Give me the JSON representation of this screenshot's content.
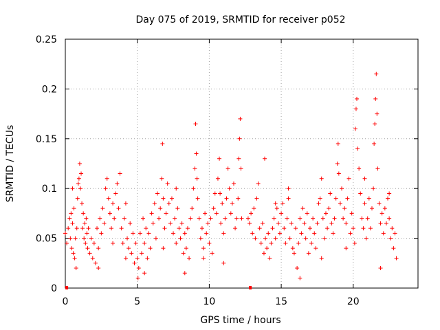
{
  "chart_data": {
    "type": "scatter",
    "title": "Day 075 of 2019, SRMTID for receiver p052",
    "xlabel": "GPS time / hours",
    "ylabel": "SRMTID / TECUs",
    "xlim": [
      0,
      24.5
    ],
    "ylim": [
      0,
      0.25
    ],
    "xticks": [
      0,
      5,
      10,
      15,
      20
    ],
    "xtick_labels": [
      "0",
      "5",
      "10",
      "15",
      "20"
    ],
    "yticks": [
      0,
      0.05,
      0.1,
      0.15,
      0.2,
      0.25
    ],
    "ytick_labels": [
      "0",
      "0.05",
      "0.1",
      "0.15",
      "0.2",
      "0.25"
    ],
    "grid": true,
    "marker": "+",
    "color": "#ff0000",
    "series": [
      {
        "name": "SRMTID",
        "points": [
          [
            0.0,
            0.055
          ],
          [
            0.1,
            0.045
          ],
          [
            0.2,
            0.06
          ],
          [
            0.3,
            0.07
          ],
          [
            0.35,
            0.05
          ],
          [
            0.4,
            0.075
          ],
          [
            0.45,
            0.04
          ],
          [
            0.5,
            0.065
          ],
          [
            0.55,
            0.035
          ],
          [
            0.6,
            0.08
          ],
          [
            0.65,
            0.03
          ],
          [
            0.7,
            0.05
          ],
          [
            0.75,
            0.02
          ],
          [
            0.8,
            0.06
          ],
          [
            0.85,
            0.09
          ],
          [
            0.9,
            0.105
          ],
          [
            0.95,
            0.11
          ],
          [
            1.0,
            0.125
          ],
          [
            1.05,
            0.1
          ],
          [
            1.1,
            0.115
          ],
          [
            1.15,
            0.085
          ],
          [
            1.2,
            0.06
          ],
          [
            1.25,
            0.075
          ],
          [
            1.3,
            0.05
          ],
          [
            1.35,
            0.065
          ],
          [
            1.4,
            0.045
          ],
          [
            1.45,
            0.07
          ],
          [
            1.5,
            0.055
          ],
          [
            1.55,
            0.04
          ],
          [
            1.6,
            0.06
          ],
          [
            1.7,
            0.035
          ],
          [
            1.8,
            0.05
          ],
          [
            1.9,
            0.03
          ],
          [
            2.0,
            0.045
          ],
          [
            2.1,
            0.025
          ],
          [
            2.2,
            0.06
          ],
          [
            2.3,
            0.04
          ],
          [
            2.4,
            0.07
          ],
          [
            2.5,
            0.055
          ],
          [
            2.6,
            0.08
          ],
          [
            2.7,
            0.065
          ],
          [
            2.8,
            0.1
          ],
          [
            2.9,
            0.11
          ],
          [
            3.0,
            0.09
          ],
          [
            3.1,
            0.075
          ],
          [
            3.2,
            0.06
          ],
          [
            3.3,
            0.085
          ],
          [
            3.4,
            0.07
          ],
          [
            3.5,
            0.095
          ],
          [
            3.6,
            0.105
          ],
          [
            3.7,
            0.08
          ],
          [
            3.8,
            0.115
          ],
          [
            3.9,
            0.06
          ],
          [
            4.0,
            0.045
          ],
          [
            4.1,
            0.07
          ],
          [
            4.2,
            0.03
          ],
          [
            4.3,
            0.05
          ],
          [
            4.4,
            0.04
          ],
          [
            4.5,
            0.065
          ],
          [
            4.6,
            0.035
          ],
          [
            4.7,
            0.055
          ],
          [
            4.8,
            0.025
          ],
          [
            4.9,
            0.045
          ],
          [
            5.0,
            0.03
          ],
          [
            5.05,
            0.01
          ],
          [
            5.1,
            0.02
          ],
          [
            5.2,
            0.055
          ],
          [
            5.3,
            0.035
          ],
          [
            5.4,
            0.07
          ],
          [
            5.5,
            0.045
          ],
          [
            5.6,
            0.06
          ],
          [
            5.7,
            0.03
          ],
          [
            5.8,
            0.055
          ],
          [
            5.9,
            0.04
          ],
          [
            6.0,
            0.075
          ],
          [
            6.1,
            0.065
          ],
          [
            6.2,
            0.085
          ],
          [
            6.3,
            0.05
          ],
          [
            6.4,
            0.095
          ],
          [
            6.5,
            0.07
          ],
          [
            6.6,
            0.08
          ],
          [
            6.7,
            0.11
          ],
          [
            6.75,
            0.145
          ],
          [
            6.8,
            0.09
          ],
          [
            6.9,
            0.06
          ],
          [
            7.0,
            0.075
          ],
          [
            7.1,
            0.105
          ],
          [
            7.2,
            0.085
          ],
          [
            7.3,
            0.065
          ],
          [
            7.4,
            0.09
          ],
          [
            7.5,
            0.055
          ],
          [
            7.6,
            0.07
          ],
          [
            7.7,
            0.045
          ],
          [
            7.8,
            0.08
          ],
          [
            7.9,
            0.06
          ],
          [
            8.0,
            0.05
          ],
          [
            8.1,
            0.065
          ],
          [
            8.2,
            0.035
          ],
          [
            8.3,
            0.055
          ],
          [
            8.4,
            0.04
          ],
          [
            8.5,
            0.06
          ],
          [
            8.6,
            0.03
          ],
          [
            8.7,
            0.07
          ],
          [
            8.8,
            0.08
          ],
          [
            8.9,
            0.1
          ],
          [
            9.0,
            0.12
          ],
          [
            9.05,
            0.165
          ],
          [
            9.1,
            0.135
          ],
          [
            9.15,
            0.11
          ],
          [
            9.2,
            0.09
          ],
          [
            9.3,
            0.07
          ],
          [
            9.4,
            0.05
          ],
          [
            9.5,
            0.06
          ],
          [
            9.6,
            0.04
          ],
          [
            9.7,
            0.075
          ],
          [
            9.8,
            0.055
          ],
          [
            9.9,
            0.065
          ],
          [
            10.0,
            0.045
          ],
          [
            10.1,
            0.07
          ],
          [
            10.2,
            0.035
          ],
          [
            10.3,
            0.08
          ],
          [
            10.4,
            0.095
          ],
          [
            10.5,
            0.075
          ],
          [
            10.6,
            0.11
          ],
          [
            10.7,
            0.13
          ],
          [
            10.75,
            0.095
          ],
          [
            10.8,
            0.065
          ],
          [
            10.9,
            0.085
          ],
          [
            11.0,
            0.055
          ],
          [
            11.1,
            0.07
          ],
          [
            11.2,
            0.09
          ],
          [
            11.3,
            0.12
          ],
          [
            11.4,
            0.1
          ],
          [
            11.5,
            0.075
          ],
          [
            11.6,
            0.085
          ],
          [
            11.7,
            0.105
          ],
          [
            11.8,
            0.06
          ],
          [
            11.9,
            0.07
          ],
          [
            12.0,
            0.09
          ],
          [
            12.05,
            0.13
          ],
          [
            12.1,
            0.15
          ],
          [
            12.15,
            0.17
          ],
          [
            12.2,
            0.12
          ],
          [
            12.25,
            0.07
          ],
          [
            12.7,
            0.07
          ],
          [
            12.8,
            0.065
          ],
          [
            12.9,
            0.075
          ],
          [
            13.0,
            0.055
          ],
          [
            13.1,
            0.08
          ],
          [
            13.2,
            0.05
          ],
          [
            13.3,
            0.09
          ],
          [
            13.4,
            0.105
          ],
          [
            13.5,
            0.06
          ],
          [
            13.6,
            0.045
          ],
          [
            13.7,
            0.065
          ],
          [
            13.8,
            0.035
          ],
          [
            13.85,
            0.13
          ],
          [
            13.9,
            0.05
          ],
          [
            14.0,
            0.04
          ],
          [
            14.1,
            0.055
          ],
          [
            14.2,
            0.03
          ],
          [
            14.3,
            0.045
          ],
          [
            14.4,
            0.06
          ],
          [
            14.5,
            0.07
          ],
          [
            14.6,
            0.05
          ],
          [
            14.7,
            0.08
          ],
          [
            14.8,
            0.065
          ],
          [
            14.9,
            0.055
          ],
          [
            15.0,
            0.075
          ],
          [
            15.1,
            0.085
          ],
          [
            15.2,
            0.06
          ],
          [
            15.3,
            0.045
          ],
          [
            15.4,
            0.07
          ],
          [
            15.5,
            0.09
          ],
          [
            15.6,
            0.05
          ],
          [
            15.7,
            0.065
          ],
          [
            15.8,
            0.04
          ],
          [
            15.9,
            0.035
          ],
          [
            16.0,
            0.06
          ],
          [
            16.1,
            0.02
          ],
          [
            16.2,
            0.045
          ],
          [
            16.3,
            0.07
          ],
          [
            16.4,
            0.055
          ],
          [
            16.5,
            0.08
          ],
          [
            16.6,
            0.065
          ],
          [
            16.7,
            0.05
          ],
          [
            16.8,
            0.075
          ],
          [
            16.9,
            0.035
          ],
          [
            17.0,
            0.06
          ],
          [
            17.1,
            0.045
          ],
          [
            17.2,
            0.07
          ],
          [
            17.3,
            0.055
          ],
          [
            17.4,
            0.04
          ],
          [
            17.5,
            0.065
          ],
          [
            17.6,
            0.085
          ],
          [
            17.7,
            0.09
          ],
          [
            17.8,
            0.11
          ],
          [
            17.9,
            0.07
          ],
          [
            18.0,
            0.05
          ],
          [
            18.1,
            0.075
          ],
          [
            18.2,
            0.06
          ],
          [
            18.3,
            0.08
          ],
          [
            18.4,
            0.095
          ],
          [
            18.5,
            0.065
          ],
          [
            18.6,
            0.055
          ],
          [
            18.7,
            0.07
          ],
          [
            18.8,
            0.09
          ],
          [
            18.9,
            0.125
          ],
          [
            18.95,
            0.145
          ],
          [
            19.0,
            0.115
          ],
          [
            19.1,
            0.085
          ],
          [
            19.2,
            0.1
          ],
          [
            19.3,
            0.07
          ],
          [
            19.4,
            0.08
          ],
          [
            19.5,
            0.065
          ],
          [
            19.6,
            0.09
          ],
          [
            19.7,
            0.11
          ],
          [
            19.8,
            0.055
          ],
          [
            19.9,
            0.075
          ],
          [
            20.0,
            0.06
          ],
          [
            20.1,
            0.045
          ],
          [
            20.15,
            0.16
          ],
          [
            20.2,
            0.18
          ],
          [
            20.25,
            0.19
          ],
          [
            20.3,
            0.14
          ],
          [
            20.4,
            0.12
          ],
          [
            20.5,
            0.095
          ],
          [
            20.6,
            0.07
          ],
          [
            20.7,
            0.06
          ],
          [
            20.8,
            0.085
          ],
          [
            20.9,
            0.05
          ],
          [
            21.0,
            0.07
          ],
          [
            21.1,
            0.09
          ],
          [
            21.2,
            0.06
          ],
          [
            21.3,
            0.08
          ],
          [
            21.4,
            0.1
          ],
          [
            21.45,
            0.145
          ],
          [
            21.5,
            0.165
          ],
          [
            21.55,
            0.19
          ],
          [
            21.6,
            0.215
          ],
          [
            21.65,
            0.175
          ],
          [
            21.7,
            0.12
          ],
          [
            21.8,
            0.085
          ],
          [
            21.9,
            0.065
          ],
          [
            22.0,
            0.075
          ],
          [
            22.1,
            0.055
          ],
          [
            22.2,
            0.08
          ],
          [
            22.3,
            0.065
          ],
          [
            22.4,
            0.09
          ],
          [
            22.5,
            0.07
          ],
          [
            22.6,
            0.05
          ],
          [
            22.7,
            0.06
          ],
          [
            22.8,
            0.04
          ],
          [
            22.9,
            0.055
          ],
          [
            23.0,
            0.03
          ],
          [
            0.5,
            0.1
          ],
          [
            2.3,
            0.02
          ],
          [
            3.3,
            0.045
          ],
          [
            5.5,
            0.015
          ],
          [
            6.8,
            0.04
          ],
          [
            8.3,
            0.015
          ],
          [
            9.6,
            0.03
          ],
          [
            11.0,
            0.025
          ],
          [
            14.6,
            0.085
          ],
          [
            16.3,
            0.01
          ],
          [
            17.8,
            0.03
          ],
          [
            19.5,
            0.04
          ],
          [
            21.9,
            0.02
          ],
          [
            22.5,
            0.095
          ],
          [
            4.2,
            0.085
          ],
          [
            7.7,
            0.1
          ],
          [
            15.5,
            0.1
          ],
          [
            20.8,
            0.11
          ]
        ]
      }
    ],
    "markers_on_axis": [
      0.1,
      12.85
    ]
  }
}
